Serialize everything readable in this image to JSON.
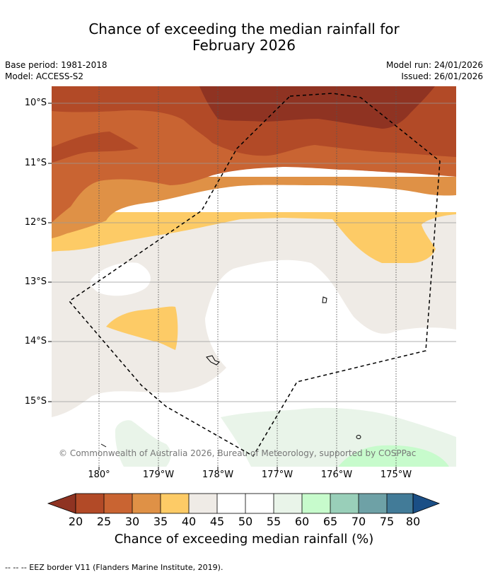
{
  "title": {
    "line1": "Chance of exceeding the median rainfall for",
    "line2": "February 2026"
  },
  "meta": {
    "base_period": "Base period: 1981-2018",
    "model": "Model: ACCESS-S2",
    "model_run": "Model run: 24/01/2026",
    "issued": "Issued: 26/01/2026"
  },
  "map": {
    "latitude_labels": [
      "10°S",
      "11°S",
      "12°S",
      "13°S",
      "14°S",
      "15°S"
    ],
    "longitude_labels": [
      "180°",
      "179°W",
      "178°W",
      "177°W",
      "176°W",
      "175°W"
    ],
    "attribution": "© Commonwealth of Australia 2026, Bureau of Meteorology, supported by COSPPac",
    "eez_border": "EEZ border"
  },
  "colorbar": {
    "title": "Chance of exceeding median rainfall (%)",
    "ticks": [
      "20",
      "25",
      "30",
      "35",
      "40",
      "45",
      "50",
      "55",
      "60",
      "65",
      "70",
      "75",
      "80"
    ],
    "colors": {
      "below_20": "#8f3322",
      "c20_25": "#b24a27",
      "c25_30": "#c96432",
      "c30_35": "#df9146",
      "c35_40": "#fdcb66",
      "c40_45": "#efebe6",
      "c45_50": "#ffffff",
      "c50_55": "#ffffff",
      "c55_60": "#e9f4e9",
      "c60_65": "#c7fbcc",
      "c65_70": "#99cfb9",
      "c70_75": "#6ea1a6",
      "c75_80": "#427b98",
      "above_80": "#1b4f86"
    }
  },
  "footer": {
    "legend_text": "--  --  -- EEZ border V11 (Flanders Marine Institute, 2019)."
  }
}
